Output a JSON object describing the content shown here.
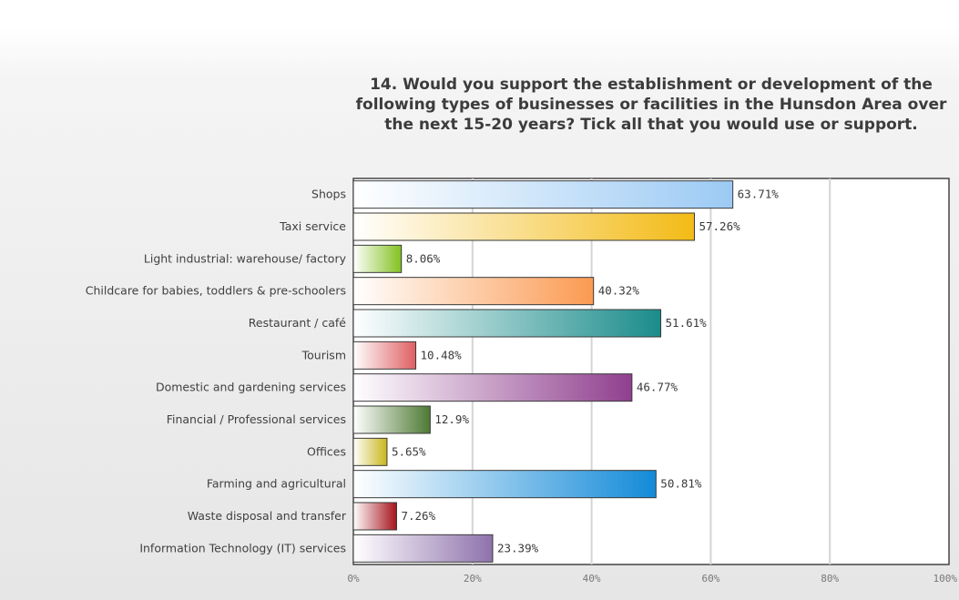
{
  "chart_data": {
    "type": "bar",
    "orientation": "horizontal",
    "title": "14. Would you support the establishment or development of the following types of businesses or facilities in the Hunsdon Area over the next 15-20 years? Tick all that you would use or support.",
    "categories": [
      "Shops",
      "Taxi service",
      "Light industrial: warehouse/ factory",
      "Childcare for babies, toddlers & pre-schoolers",
      "Restaurant / café",
      "Tourism",
      "Domestic and gardening services",
      "Financial / Professional services",
      "Offices",
      "Farming and agricultural",
      "Waste disposal and transfer",
      "Information Technology (IT) services"
    ],
    "values": [
      63.71,
      57.26,
      8.06,
      40.32,
      51.61,
      10.48,
      46.77,
      12.9,
      5.65,
      50.81,
      7.26,
      23.39
    ],
    "value_labels": [
      "63.71%",
      "57.26%",
      "8.06%",
      "40.32%",
      "51.61%",
      "10.48%",
      "46.77%",
      "12.9%",
      "5.65%",
      "50.81%",
      "7.26%",
      "23.39%"
    ],
    "colors": [
      "#9ccaf4",
      "#f3bb16",
      "#82c11f",
      "#fb9a52",
      "#1a8c8b",
      "#df5f62",
      "#8f3f8e",
      "#4e7a34",
      "#c9b61a",
      "#138ad8",
      "#a6131c",
      "#8e72ac"
    ],
    "xlim": [
      0,
      100
    ],
    "xticks": [
      "0%",
      "20%",
      "40%",
      "60%",
      "80%",
      "100%"
    ],
    "tick_values": [
      0,
      20,
      40,
      60,
      80,
      100
    ],
    "grid": true,
    "legend": "none"
  }
}
